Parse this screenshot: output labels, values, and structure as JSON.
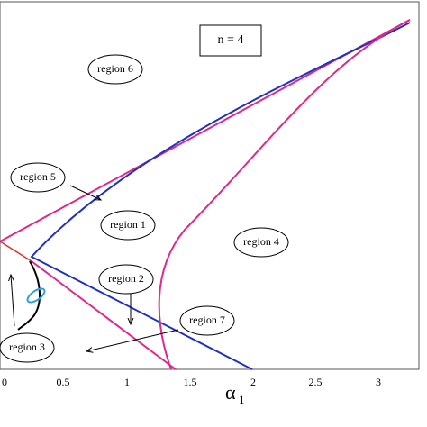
{
  "annotation": "n = 4",
  "regions": [
    "region 6",
    "region 5",
    "region 1",
    "region 4",
    "region 2",
    "region 7",
    "region 3"
  ],
  "xticks": [
    "0",
    "0.5",
    "1",
    "1.5",
    "2",
    "2.5",
    "3"
  ],
  "xlabel": "α",
  "xlabel_sub": "1"
}
